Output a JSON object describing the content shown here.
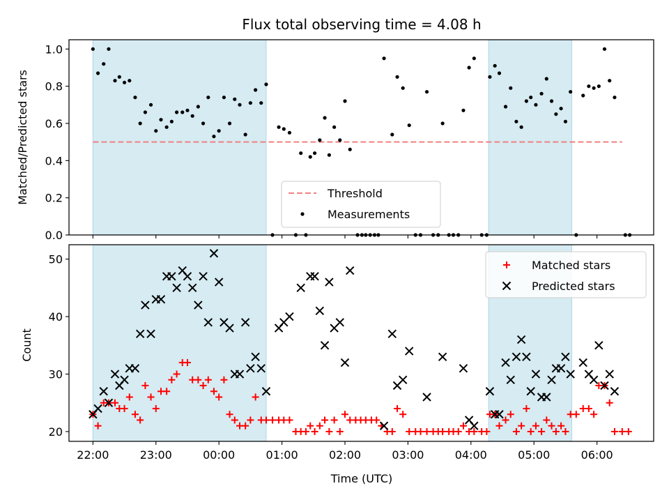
{
  "chart_data": {
    "type": "scatter",
    "title": "Flux total observing time = 4.08 h",
    "xlabel": "Time (UTC)",
    "x_ticks": [
      "22:00",
      "23:00",
      "00:00",
      "01:00",
      "02:00",
      "03:00",
      "04:00",
      "05:00",
      "06:00"
    ],
    "x_unit": "hours since 22:00 UTC",
    "x_range": [
      -0.38,
      8.9
    ],
    "shaded_intervals": [
      [
        0.0,
        2.75
      ],
      [
        6.28,
        7.6
      ]
    ],
    "shade_color": "#add8e6",
    "top_panel": {
      "ylabel": "Matched/Predicted stars",
      "ylim": [
        0,
        1.05
      ],
      "y_ticks": [
        "0.0",
        "0.2",
        "0.4",
        "0.6",
        "0.8",
        "1.0"
      ],
      "threshold": {
        "name": "Threshold",
        "value": 0.5,
        "x_range": [
          0.0,
          8.4
        ],
        "color": "#f08080"
      },
      "measurements": {
        "name": "Measurements",
        "color": "#000000",
        "points": [
          [
            0.0,
            1.0
          ],
          [
            0.08,
            0.87
          ],
          [
            0.17,
            0.92
          ],
          [
            0.25,
            1.0
          ],
          [
            0.35,
            0.83
          ],
          [
            0.42,
            0.85
          ],
          [
            0.5,
            0.82
          ],
          [
            0.58,
            0.83
          ],
          [
            0.67,
            0.74
          ],
          [
            0.75,
            0.6
          ],
          [
            0.83,
            0.66
          ],
          [
            0.92,
            0.7
          ],
          [
            1.0,
            0.56
          ],
          [
            1.08,
            0.62
          ],
          [
            1.17,
            0.58
          ],
          [
            1.25,
            0.61
          ],
          [
            1.33,
            0.66
          ],
          [
            1.42,
            0.66
          ],
          [
            1.5,
            0.67
          ],
          [
            1.58,
            0.64
          ],
          [
            1.67,
            0.69
          ],
          [
            1.75,
            0.6
          ],
          [
            1.83,
            0.74
          ],
          [
            1.92,
            0.53
          ],
          [
            2.0,
            0.56
          ],
          [
            2.08,
            0.74
          ],
          [
            2.17,
            0.6
          ],
          [
            2.25,
            0.73
          ],
          [
            2.33,
            0.7
          ],
          [
            2.42,
            0.54
          ],
          [
            2.5,
            0.71
          ],
          [
            2.58,
            0.78
          ],
          [
            2.67,
            0.71
          ],
          [
            2.75,
            0.81
          ],
          [
            2.85,
            0.0
          ],
          [
            2.95,
            0.58
          ],
          [
            3.03,
            0.57
          ],
          [
            3.12,
            0.55
          ],
          [
            3.22,
            0.0
          ],
          [
            3.3,
            0.44
          ],
          [
            3.38,
            0.0
          ],
          [
            3.45,
            0.42
          ],
          [
            3.52,
            0.44
          ],
          [
            3.6,
            0.51
          ],
          [
            3.68,
            0.63
          ],
          [
            3.75,
            0.43
          ],
          [
            3.83,
            0.58
          ],
          [
            3.92,
            0.51
          ],
          [
            4.0,
            0.72
          ],
          [
            4.08,
            0.46
          ],
          [
            4.2,
            0.0
          ],
          [
            4.27,
            0.0
          ],
          [
            4.33,
            0.0
          ],
          [
            4.4,
            0.0
          ],
          [
            4.47,
            0.0
          ],
          [
            4.53,
            0.0
          ],
          [
            4.62,
            0.95
          ],
          [
            4.75,
            0.54
          ],
          [
            4.83,
            0.85
          ],
          [
            4.92,
            0.79
          ],
          [
            5.02,
            0.59
          ],
          [
            5.12,
            0.0
          ],
          [
            5.2,
            0.0
          ],
          [
            5.3,
            0.77
          ],
          [
            5.4,
            0.0
          ],
          [
            5.48,
            0.0
          ],
          [
            5.55,
            0.6
          ],
          [
            5.65,
            0.0
          ],
          [
            5.72,
            0.0
          ],
          [
            5.8,
            0.0
          ],
          [
            5.88,
            0.67
          ],
          [
            5.97,
            0.9
          ],
          [
            6.05,
            0.95
          ],
          [
            6.17,
            0.0
          ],
          [
            6.25,
            0.0
          ],
          [
            6.3,
            0.85
          ],
          [
            6.38,
            0.91
          ],
          [
            6.45,
            0.87
          ],
          [
            6.55,
            0.69
          ],
          [
            6.63,
            0.79
          ],
          [
            6.72,
            0.61
          ],
          [
            6.8,
            0.58
          ],
          [
            6.88,
            0.72
          ],
          [
            6.95,
            0.74
          ],
          [
            7.03,
            0.7
          ],
          [
            7.12,
            0.76
          ],
          [
            7.2,
            0.84
          ],
          [
            7.28,
            0.72
          ],
          [
            7.35,
            0.65
          ],
          [
            7.43,
            0.68
          ],
          [
            7.5,
            0.61
          ],
          [
            7.58,
            0.77
          ],
          [
            7.67,
            0.0
          ],
          [
            7.78,
            0.75
          ],
          [
            7.87,
            0.8
          ],
          [
            7.95,
            0.79
          ],
          [
            8.03,
            0.8
          ],
          [
            8.12,
            1.0
          ],
          [
            8.2,
            0.83
          ],
          [
            8.28,
            0.74
          ],
          [
            8.45,
            0.0
          ],
          [
            8.52,
            0.0
          ]
        ]
      }
    },
    "bottom_panel": {
      "ylabel": "Count",
      "ylim": [
        18.3,
        52.5
      ],
      "y_ticks": [
        "20",
        "30",
        "40",
        "50"
      ],
      "matched": {
        "name": "Matched stars",
        "color": "#ff0000",
        "points": [
          [
            0.0,
            23
          ],
          [
            0.08,
            21
          ],
          [
            0.17,
            25
          ],
          [
            0.25,
            25
          ],
          [
            0.35,
            25
          ],
          [
            0.42,
            24
          ],
          [
            0.5,
            24
          ],
          [
            0.58,
            26
          ],
          [
            0.67,
            23
          ],
          [
            0.75,
            22
          ],
          [
            0.83,
            28
          ],
          [
            0.92,
            26
          ],
          [
            1.0,
            24
          ],
          [
            1.08,
            27
          ],
          [
            1.17,
            27
          ],
          [
            1.25,
            29
          ],
          [
            1.33,
            30
          ],
          [
            1.42,
            32
          ],
          [
            1.5,
            32
          ],
          [
            1.58,
            29
          ],
          [
            1.67,
            29
          ],
          [
            1.75,
            28
          ],
          [
            1.83,
            29
          ],
          [
            1.92,
            27
          ],
          [
            2.0,
            26
          ],
          [
            2.08,
            29
          ],
          [
            2.17,
            23
          ],
          [
            2.25,
            22
          ],
          [
            2.33,
            21
          ],
          [
            2.42,
            21
          ],
          [
            2.5,
            22
          ],
          [
            2.58,
            26
          ],
          [
            2.67,
            22
          ],
          [
            2.75,
            22
          ],
          [
            2.85,
            22
          ],
          [
            2.95,
            22
          ],
          [
            3.03,
            22
          ],
          [
            3.12,
            22
          ],
          [
            3.22,
            20
          ],
          [
            3.3,
            20
          ],
          [
            3.38,
            20
          ],
          [
            3.45,
            21
          ],
          [
            3.52,
            20
          ],
          [
            3.6,
            21
          ],
          [
            3.68,
            22
          ],
          [
            3.75,
            20
          ],
          [
            3.83,
            22
          ],
          [
            3.92,
            20
          ],
          [
            4.0,
            23
          ],
          [
            4.08,
            22
          ],
          [
            4.17,
            22
          ],
          [
            4.25,
            22
          ],
          [
            4.33,
            22
          ],
          [
            4.42,
            22
          ],
          [
            4.5,
            22
          ],
          [
            4.58,
            21
          ],
          [
            4.67,
            20
          ],
          [
            4.75,
            20
          ],
          [
            4.83,
            24
          ],
          [
            4.92,
            23
          ],
          [
            5.02,
            20
          ],
          [
            5.12,
            20
          ],
          [
            5.2,
            20
          ],
          [
            5.3,
            20
          ],
          [
            5.4,
            20
          ],
          [
            5.48,
            20
          ],
          [
            5.55,
            20
          ],
          [
            5.65,
            20
          ],
          [
            5.72,
            20
          ],
          [
            5.8,
            20
          ],
          [
            5.88,
            21
          ],
          [
            5.97,
            20
          ],
          [
            6.05,
            20
          ],
          [
            6.17,
            20
          ],
          [
            6.25,
            20
          ],
          [
            6.3,
            23
          ],
          [
            6.38,
            23
          ],
          [
            6.45,
            21
          ],
          [
            6.55,
            22
          ],
          [
            6.63,
            23
          ],
          [
            6.72,
            20
          ],
          [
            6.8,
            21
          ],
          [
            6.88,
            24
          ],
          [
            6.95,
            20
          ],
          [
            7.03,
            21
          ],
          [
            7.12,
            20
          ],
          [
            7.2,
            22
          ],
          [
            7.28,
            21
          ],
          [
            7.35,
            20
          ],
          [
            7.43,
            21
          ],
          [
            7.5,
            20
          ],
          [
            7.58,
            23
          ],
          [
            7.67,
            23
          ],
          [
            7.78,
            24
          ],
          [
            7.87,
            24
          ],
          [
            7.95,
            23
          ],
          [
            8.03,
            28
          ],
          [
            8.12,
            28
          ],
          [
            8.2,
            25
          ],
          [
            8.28,
            20
          ],
          [
            8.4,
            20
          ],
          [
            8.5,
            20
          ]
        ]
      },
      "predicted": {
        "name": "Predicted stars",
        "color": "#000000",
        "points": [
          [
            0.0,
            23
          ],
          [
            0.08,
            24
          ],
          [
            0.17,
            27
          ],
          [
            0.25,
            25
          ],
          [
            0.35,
            30
          ],
          [
            0.42,
            28
          ],
          [
            0.5,
            29
          ],
          [
            0.58,
            31
          ],
          [
            0.67,
            31
          ],
          [
            0.75,
            37
          ],
          [
            0.83,
            42
          ],
          [
            0.92,
            37
          ],
          [
            1.0,
            43
          ],
          [
            1.08,
            43
          ],
          [
            1.17,
            47
          ],
          [
            1.25,
            47
          ],
          [
            1.33,
            45
          ],
          [
            1.42,
            48
          ],
          [
            1.5,
            47
          ],
          [
            1.58,
            45
          ],
          [
            1.67,
            42
          ],
          [
            1.75,
            47
          ],
          [
            1.83,
            39
          ],
          [
            1.92,
            51
          ],
          [
            2.0,
            46
          ],
          [
            2.08,
            39
          ],
          [
            2.17,
            38
          ],
          [
            2.25,
            30
          ],
          [
            2.33,
            30
          ],
          [
            2.42,
            39
          ],
          [
            2.5,
            31
          ],
          [
            2.58,
            33
          ],
          [
            2.67,
            31
          ],
          [
            2.75,
            27
          ],
          [
            2.95,
            38
          ],
          [
            3.03,
            39
          ],
          [
            3.12,
            40
          ],
          [
            3.3,
            45
          ],
          [
            3.45,
            47
          ],
          [
            3.52,
            47
          ],
          [
            3.6,
            41
          ],
          [
            3.68,
            35
          ],
          [
            3.75,
            46
          ],
          [
            3.83,
            38
          ],
          [
            3.92,
            39
          ],
          [
            4.0,
            32
          ],
          [
            4.08,
            48
          ],
          [
            4.62,
            21
          ],
          [
            4.75,
            37
          ],
          [
            4.83,
            28
          ],
          [
            4.92,
            29
          ],
          [
            5.02,
            34
          ],
          [
            5.3,
            26
          ],
          [
            5.55,
            33
          ],
          [
            5.88,
            31
          ],
          [
            5.97,
            22
          ],
          [
            6.05,
            21
          ],
          [
            6.3,
            27
          ],
          [
            6.38,
            23
          ],
          [
            6.45,
            23
          ],
          [
            6.55,
            32
          ],
          [
            6.63,
            29
          ],
          [
            6.72,
            33
          ],
          [
            6.8,
            36
          ],
          [
            6.88,
            33
          ],
          [
            6.95,
            27
          ],
          [
            7.03,
            30
          ],
          [
            7.12,
            26
          ],
          [
            7.2,
            26
          ],
          [
            7.28,
            29
          ],
          [
            7.35,
            31
          ],
          [
            7.43,
            31
          ],
          [
            7.5,
            33
          ],
          [
            7.58,
            30
          ],
          [
            7.78,
            32
          ],
          [
            7.87,
            30
          ],
          [
            7.95,
            29
          ],
          [
            8.03,
            35
          ],
          [
            8.12,
            28
          ],
          [
            8.2,
            30
          ],
          [
            8.28,
            27
          ]
        ]
      }
    }
  }
}
